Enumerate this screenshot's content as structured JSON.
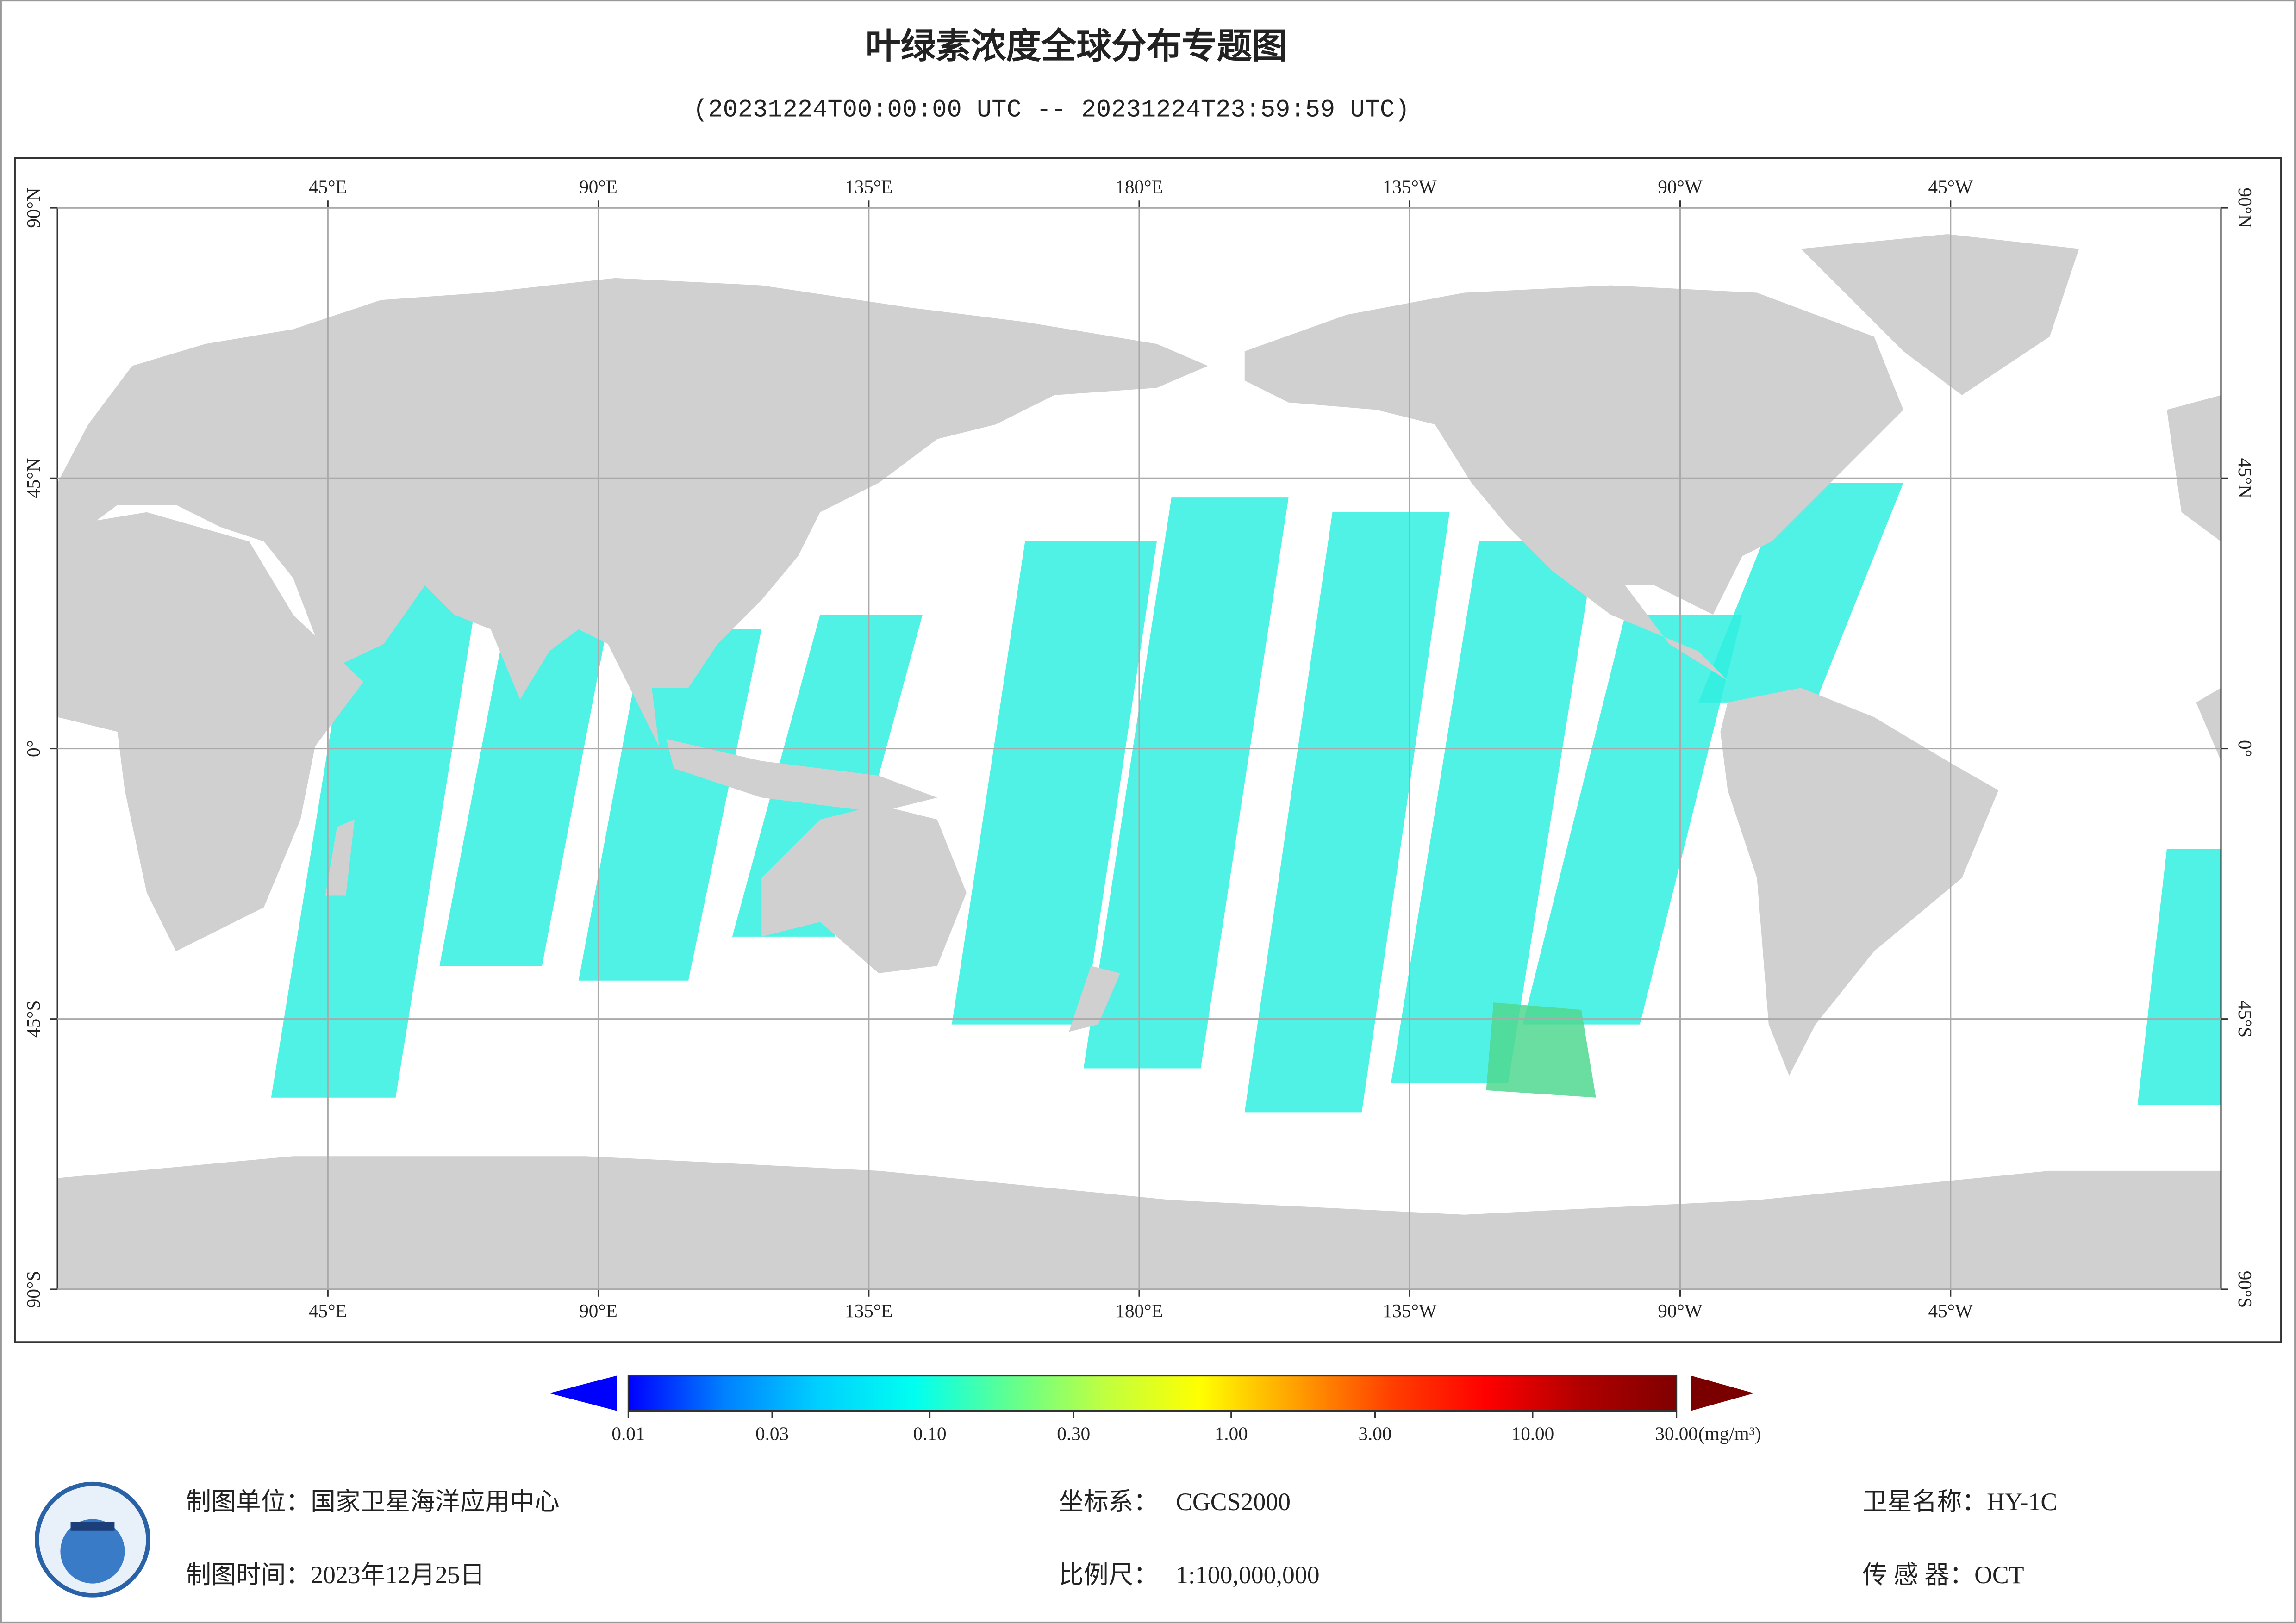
{
  "title": "叶绿素浓度全球分布专题图",
  "subtitle": "(20231224T00:00:00 UTC -- 20231224T23:59:59 UTC)",
  "map": {
    "lon_lim": [
      0,
      360
    ],
    "lat_lim": [
      -90,
      90
    ],
    "grid": true,
    "lon_ticks": [
      {
        "value": 45,
        "label": "45°E"
      },
      {
        "value": 90,
        "label": "90°E"
      },
      {
        "value": 135,
        "label": "135°E"
      },
      {
        "value": 180,
        "label": "180°E"
      },
      {
        "value": 225,
        "label": "135°W"
      },
      {
        "value": 270,
        "label": "90°W"
      },
      {
        "value": 315,
        "label": "45°W"
      }
    ],
    "lat_ticks": [
      {
        "value": 90,
        "label": "90°N"
      },
      {
        "value": 45,
        "label": "45°N"
      },
      {
        "value": 0,
        "label": "0°"
      },
      {
        "value": -45,
        "label": "45°S"
      },
      {
        "value": -90,
        "label": "90°S"
      }
    ]
  },
  "colorbar": {
    "log_scale": true,
    "lim": [
      0.01,
      30
    ],
    "colors": [
      "#0000ff",
      "#0080ff",
      "#00d0ff",
      "#00fff0",
      "#60ff90",
      "#c0ff40",
      "#ffff00",
      "#ffa000",
      "#ff4000",
      "#ff0000",
      "#b00000",
      "#800000"
    ],
    "ticks": [
      {
        "value": 0.01,
        "label": "0.01"
      },
      {
        "value": 0.03,
        "label": "0.03"
      },
      {
        "value": 0.1,
        "label": "0.10"
      },
      {
        "value": 0.3,
        "label": "0.30"
      },
      {
        "value": 1,
        "label": "1.00"
      },
      {
        "value": 3,
        "label": "3.00"
      },
      {
        "value": 10,
        "label": "10.00"
      },
      {
        "value": 30,
        "label": "30.00"
      }
    ],
    "unit": "(mg/m³)"
  },
  "footer": {
    "unit": {
      "label": "制图单位：",
      "value": "国家卫星海洋应用中心"
    },
    "time": {
      "label": "制图时间：",
      "value": "2023年12月25日"
    },
    "crs": {
      "label": "坐标系：",
      "value": "CGCS2000"
    },
    "scale": {
      "label": "比例尺：",
      "value": "1:100,000,000"
    },
    "satellite": {
      "label": "卫星名称：",
      "value": "HY-1C"
    },
    "sensor": {
      "label": "传 感 器：",
      "value": "OCT"
    }
  }
}
